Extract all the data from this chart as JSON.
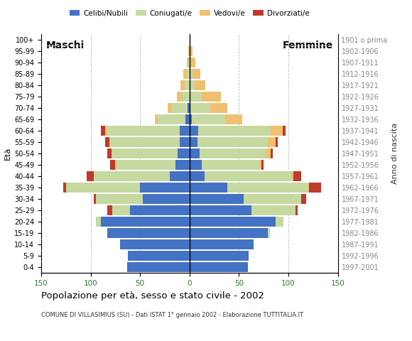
{
  "age_groups": [
    "0-4",
    "5-9",
    "10-14",
    "15-19",
    "20-24",
    "25-29",
    "30-34",
    "35-39",
    "40-44",
    "45-49",
    "50-54",
    "55-59",
    "60-64",
    "65-69",
    "70-74",
    "75-79",
    "80-84",
    "85-89",
    "90-94",
    "95-99",
    "100+"
  ],
  "birth_years": [
    "1997-2001",
    "1992-1996",
    "1987-1991",
    "1982-1986",
    "1977-1981",
    "1972-1976",
    "1967-1971",
    "1962-1966",
    "1957-1961",
    "1952-1956",
    "1947-1951",
    "1942-1946",
    "1937-1941",
    "1932-1936",
    "1927-1931",
    "1922-1926",
    "1917-1921",
    "1912-1916",
    "1907-1911",
    "1902-1906",
    "1901 o prima"
  ],
  "males": {
    "celibe": [
      63,
      62,
      70,
      83,
      90,
      60,
      47,
      50,
      20,
      14,
      12,
      10,
      10,
      4,
      2,
      0,
      0,
      0,
      0,
      0,
      0
    ],
    "coniugato": [
      0,
      0,
      0,
      0,
      5,
      18,
      48,
      75,
      77,
      60,
      66,
      70,
      73,
      28,
      16,
      8,
      5,
      3,
      2,
      0,
      0
    ],
    "vedovo": [
      0,
      0,
      0,
      0,
      0,
      0,
      0,
      0,
      0,
      1,
      1,
      1,
      2,
      3,
      4,
      5,
      4,
      3,
      1,
      1,
      0
    ],
    "divorziato": [
      0,
      0,
      0,
      0,
      0,
      5,
      2,
      3,
      7,
      5,
      4,
      4,
      5,
      0,
      0,
      0,
      0,
      0,
      0,
      0,
      0
    ]
  },
  "females": {
    "nubile": [
      59,
      60,
      65,
      79,
      87,
      63,
      55,
      38,
      15,
      12,
      10,
      8,
      9,
      2,
      1,
      0,
      0,
      0,
      0,
      0,
      0
    ],
    "coniugata": [
      0,
      0,
      0,
      2,
      8,
      44,
      58,
      82,
      88,
      59,
      67,
      71,
      73,
      34,
      20,
      12,
      5,
      3,
      1,
      0,
      0
    ],
    "vedova": [
      0,
      0,
      0,
      0,
      0,
      0,
      0,
      1,
      2,
      2,
      5,
      8,
      12,
      17,
      17,
      20,
      11,
      8,
      5,
      3,
      0
    ],
    "divorziata": [
      0,
      0,
      0,
      0,
      0,
      2,
      5,
      12,
      8,
      2,
      2,
      2,
      3,
      0,
      0,
      0,
      0,
      0,
      0,
      0,
      0
    ]
  },
  "colors": {
    "celibe": "#4472c4",
    "coniugato": "#c5d9a0",
    "vedovo": "#f0c070",
    "divorziato": "#c0392b"
  },
  "xlim": 150,
  "title": "Popolazione per età, sesso e stato civile - 2002",
  "subtitle": "COMUNE DI VILLASIMIUS (SU) - Dati ISTAT 1° gennaio 2002 - Elaborazione TUTTITALIA.IT",
  "legend_labels": [
    "Celibi/Nubili",
    "Coniugati/e",
    "Vedovi/e",
    "Divorziati/e"
  ],
  "label_left": "Maschi",
  "label_right": "Femmine",
  "ylabel_left": "Età",
  "ylabel_right": "Anno di nascita",
  "background_color": "#ffffff",
  "grid_color": "#bbbbbb",
  "tick_color": "#2e7d2e"
}
